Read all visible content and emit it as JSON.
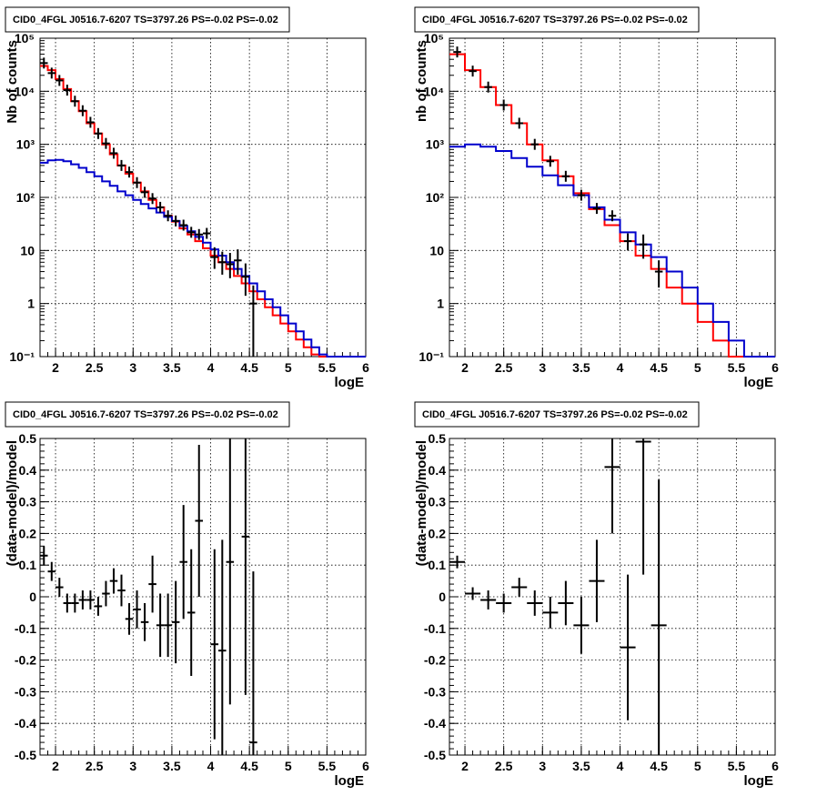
{
  "chart_data": [
    {
      "type": "line",
      "title": "CID0_4FGL J0516.7-6207 TS=3797.26 PS=-0.02 PS=-0.02",
      "xlabel": "logE",
      "ylabel": "Nb of counts",
      "ylog": true,
      "xlim": [
        1.8,
        6
      ],
      "ylim": [
        0.1,
        100000
      ],
      "grid": true,
      "xticks": [
        "2",
        "2.5",
        "3",
        "3.5",
        "4",
        "4.5",
        "5",
        "5.5",
        "6"
      ],
      "yticks": [
        "10⁻¹",
        "1",
        "10",
        "10²",
        "10³",
        "10⁴",
        "10⁵"
      ],
      "series": [
        {
          "color": "#ff0000",
          "style": "step",
          "bin_edges": [
            1.8,
            1.9,
            2.0,
            2.1,
            2.2,
            2.3,
            2.4,
            2.5,
            2.6,
            2.7,
            2.8,
            2.9,
            3.0,
            3.1,
            3.2,
            3.3,
            3.4,
            3.5,
            3.6,
            3.7,
            3.8,
            3.9,
            4.0,
            4.1,
            4.2,
            4.3,
            4.4,
            4.5,
            4.6,
            4.7,
            4.8,
            4.9,
            5.0,
            5.1,
            5.2,
            5.3,
            5.4,
            5.5,
            5.6,
            5.7,
            5.8,
            5.9,
            6.0
          ],
          "values": [
            30000,
            25000,
            17000,
            11000,
            6500,
            4200,
            2500,
            1600,
            1000,
            650,
            400,
            280,
            190,
            130,
            90,
            65,
            45,
            35,
            26,
            20,
            15,
            11,
            8,
            6,
            4.5,
            3.3,
            2.4,
            1.7,
            1.2,
            0.85,
            0.6,
            0.42,
            0.3,
            0.21,
            0.15,
            0.11,
            0.1,
            0.1,
            0.1,
            0.1,
            0.1,
            0.1
          ]
        },
        {
          "color": "#0000cc",
          "style": "step",
          "bin_edges": [
            1.8,
            1.9,
            2.0,
            2.1,
            2.2,
            2.3,
            2.4,
            2.5,
            2.6,
            2.7,
            2.8,
            2.9,
            3.0,
            3.1,
            3.2,
            3.3,
            3.4,
            3.5,
            3.6,
            3.7,
            3.8,
            3.9,
            4.0,
            4.1,
            4.2,
            4.3,
            4.4,
            4.5,
            4.6,
            4.7,
            4.8,
            4.9,
            5.0,
            5.1,
            5.2,
            5.3,
            5.4,
            5.5,
            5.6,
            5.7,
            5.8,
            5.9,
            6.0
          ],
          "values": [
            450,
            500,
            510,
            480,
            420,
            360,
            300,
            250,
            200,
            165,
            130,
            110,
            90,
            75,
            62,
            52,
            43,
            36,
            29,
            23,
            18,
            14,
            10.5,
            8,
            6,
            4.5,
            3.3,
            2.4,
            1.7,
            1.2,
            0.85,
            0.6,
            0.42,
            0.3,
            0.21,
            0.15,
            0.11,
            0.1,
            0.1,
            0.1,
            0.1,
            0.1
          ]
        },
        {
          "color": "#000000",
          "style": "errorbar",
          "x": [
            1.85,
            1.95,
            2.05,
            2.15,
            2.25,
            2.35,
            2.45,
            2.55,
            2.65,
            2.75,
            2.85,
            2.95,
            3.05,
            3.15,
            3.25,
            3.35,
            3.45,
            3.55,
            3.65,
            3.75,
            3.85,
            3.95,
            4.05,
            4.15,
            4.25,
            4.35,
            4.45,
            4.55
          ],
          "values": [
            34000,
            22000,
            16000,
            10500,
            6500,
            4300,
            2600,
            1600,
            1040,
            680,
            400,
            300,
            190,
            125,
            95,
            65,
            45,
            36,
            30,
            22,
            20,
            21,
            7.5,
            6,
            5.5,
            6.5,
            3.2,
            1.0
          ],
          "yerr_low": [
            0,
            0,
            0,
            0,
            0,
            0,
            0,
            0,
            0,
            0,
            0,
            0,
            0,
            0,
            0,
            0,
            0,
            0,
            0,
            0,
            0,
            0,
            3,
            2.5,
            2.5,
            3,
            1.8,
            0.9
          ],
          "yerr_high": [
            0,
            0,
            0,
            0,
            0,
            0,
            0,
            0,
            0,
            0,
            0,
            0,
            0,
            0,
            0,
            0,
            0,
            0,
            0,
            0,
            0,
            0,
            4,
            3.5,
            3.5,
            4,
            2.5,
            1.2
          ]
        }
      ]
    },
    {
      "type": "line",
      "title": "CID0_4FGL J0516.7-6207 TS=3797.26 PS=-0.02 PS=-0.02",
      "xlabel": "logE",
      "ylabel": "nb of counts",
      "ylog": true,
      "xlim": [
        1.8,
        6
      ],
      "ylim": [
        0.1,
        100000
      ],
      "grid": true,
      "xticks": [
        "2",
        "2.5",
        "3",
        "3.5",
        "4",
        "4.5",
        "5",
        "5.5",
        "6"
      ],
      "yticks": [
        "10⁻¹",
        "1",
        "10",
        "10²",
        "10³",
        "10⁴",
        "10⁵"
      ],
      "series": [
        {
          "color": "#ff0000",
          "style": "step",
          "bin_edges": [
            1.8,
            2.0,
            2.2,
            2.4,
            2.6,
            2.8,
            3.0,
            3.2,
            3.4,
            3.6,
            3.8,
            4.0,
            4.2,
            4.4,
            4.6,
            4.8,
            5.0,
            5.2,
            5.4,
            5.6,
            5.8,
            6.0
          ],
          "values": [
            50000,
            25000,
            12000,
            5500,
            2500,
            1000,
            500,
            250,
            120,
            60,
            30,
            15,
            8,
            4.5,
            2,
            1.0,
            0.45,
            0.2,
            0.1,
            0.1,
            0.1
          ]
        },
        {
          "color": "#0000cc",
          "style": "step",
          "bin_edges": [
            1.8,
            2.0,
            2.2,
            2.4,
            2.6,
            2.8,
            3.0,
            3.2,
            3.4,
            3.6,
            3.8,
            4.0,
            4.2,
            4.4,
            4.6,
            4.8,
            5.0,
            5.2,
            5.4,
            5.6,
            5.8,
            6.0
          ],
          "values": [
            900,
            1000,
            900,
            750,
            550,
            380,
            260,
            170,
            110,
            65,
            38,
            22,
            13,
            7.5,
            4,
            2,
            1.0,
            0.45,
            0.2,
            0.1,
            0.1
          ]
        },
        {
          "color": "#000000",
          "style": "errorbar",
          "x": [
            1.9,
            2.1,
            2.3,
            2.5,
            2.7,
            2.9,
            3.1,
            3.3,
            3.5,
            3.7,
            3.9,
            4.1,
            4.3,
            4.5
          ],
          "values": [
            55000,
            24000,
            12000,
            5500,
            2500,
            1000,
            480,
            250,
            110,
            62,
            45,
            15,
            13,
            4
          ],
          "yerr_low": [
            0,
            0,
            0,
            0,
            0,
            0,
            0,
            0,
            0,
            0,
            0,
            5,
            6,
            2
          ],
          "yerr_high": [
            0,
            0,
            0,
            0,
            0,
            0,
            0,
            0,
            0,
            0,
            0,
            6,
            7,
            2.5
          ]
        }
      ]
    },
    {
      "type": "scatter",
      "title": "CID0_4FGL J0516.7-6207 TS=3797.26 PS=-0.02 PS=-0.02",
      "xlabel": "logE",
      "ylabel": "(data-model)/model",
      "xlim": [
        1.8,
        6
      ],
      "ylim": [
        -0.5,
        0.5
      ],
      "grid": true,
      "xticks": [
        "2",
        "2.5",
        "3",
        "3.5",
        "4",
        "4.5",
        "5",
        "5.5",
        "6"
      ],
      "yticks": [
        "-0.5",
        "-0.4",
        "-0.3",
        "-0.2",
        "-0.1",
        "0",
        "0.1",
        "0.2",
        "0.3",
        "0.4",
        "0.5"
      ],
      "series": [
        {
          "color": "#000000",
          "style": "errorbar",
          "x": [
            1.85,
            1.95,
            2.05,
            2.15,
            2.25,
            2.35,
            2.45,
            2.55,
            2.65,
            2.75,
            2.85,
            2.95,
            3.05,
            3.15,
            3.25,
            3.35,
            3.45,
            3.55,
            3.65,
            3.75,
            3.85,
            4.05,
            4.15,
            4.25,
            4.45,
            4.55
          ],
          "values": [
            0.13,
            0.08,
            0.03,
            -0.02,
            -0.02,
            -0.01,
            -0.01,
            -0.03,
            0.01,
            0.05,
            0.02,
            -0.07,
            -0.04,
            -0.08,
            0.04,
            -0.09,
            -0.09,
            -0.08,
            0.11,
            -0.05,
            0.24,
            -0.15,
            -0.17,
            0.11,
            0.19,
            -0.46
          ],
          "yerr": [
            0.03,
            0.03,
            0.03,
            0.03,
            0.03,
            0.03,
            0.03,
            0.03,
            0.04,
            0.04,
            0.05,
            0.05,
            0.06,
            0.06,
            0.09,
            0.1,
            0.1,
            0.13,
            0.18,
            0.2,
            0.24,
            0.3,
            0.35,
            0.45,
            0.5,
            0.54
          ],
          "xerr": 0.05
        }
      ]
    },
    {
      "type": "scatter",
      "title": "CID0_4FGL J0516.7-6207 TS=3797.26 PS=-0.02 PS=-0.02",
      "xlabel": "logE",
      "ylabel": "(data-model)/model",
      "xlim": [
        1.8,
        6
      ],
      "ylim": [
        -0.5,
        0.5
      ],
      "grid": true,
      "xticks": [
        "2",
        "2.5",
        "3",
        "3.5",
        "4",
        "4.5",
        "5",
        "5.5",
        "6"
      ],
      "yticks": [
        "-0.5",
        "-0.4",
        "-0.3",
        "-0.2",
        "-0.1",
        "0",
        "0.1",
        "0.2",
        "0.3",
        "0.4",
        "0.5"
      ],
      "series": [
        {
          "color": "#000000",
          "style": "errorbar",
          "x": [
            1.9,
            2.1,
            2.3,
            2.5,
            2.7,
            2.9,
            3.1,
            3.3,
            3.5,
            3.7,
            3.9,
            4.1,
            4.3,
            4.5
          ],
          "values": [
            0.11,
            0.01,
            -0.01,
            -0.02,
            0.03,
            -0.02,
            -0.05,
            -0.02,
            -0.09,
            0.05,
            0.41,
            -0.16,
            0.49,
            -0.09
          ],
          "yerr": [
            0.02,
            0.02,
            0.03,
            0.03,
            0.03,
            0.04,
            0.05,
            0.07,
            0.09,
            0.13,
            0.21,
            0.23,
            0.42,
            0.46
          ],
          "xerr": 0.1
        }
      ]
    }
  ]
}
